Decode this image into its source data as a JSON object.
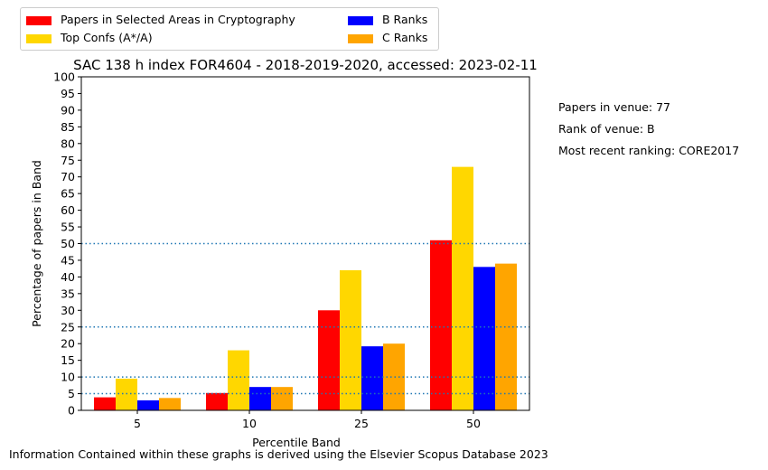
{
  "chart_data": {
    "type": "bar",
    "title": "SAC 138 h index FOR4604 - 2018-2019-2020, accessed: 2023-02-11",
    "xlabel": "Percentile Band",
    "ylabel": "Percentage of papers in Band",
    "categories": [
      "5",
      "10",
      "25",
      "50"
    ],
    "ylim": [
      0,
      100
    ],
    "yticks": [
      "0",
      "5",
      "10",
      "15",
      "20",
      "25",
      "30",
      "35",
      "40",
      "45",
      "50",
      "55",
      "60",
      "65",
      "70",
      "75",
      "80",
      "85",
      "90",
      "95",
      "100"
    ],
    "series": [
      {
        "name": "Papers in Selected Areas in Cryptography",
        "color": "#ff0000",
        "values": [
          3.9,
          5.2,
          30.0,
          51.0
        ]
      },
      {
        "name": "Top Confs (A*/A)",
        "color": "#ffd700",
        "values": [
          9.5,
          18.0,
          42.0,
          73.0
        ]
      },
      {
        "name": "B Ranks",
        "color": "#0000ff",
        "values": [
          3.0,
          7.0,
          19.2,
          43.0
        ]
      },
      {
        "name": "C Ranks",
        "color": "#ffa500",
        "values": [
          3.7,
          7.0,
          20.0,
          44.0
        ]
      }
    ],
    "reference_lines": [
      5,
      10,
      25,
      50
    ],
    "reference_line_color": "#1f77b4",
    "legend_placement": "top-left, outside"
  },
  "side_info": {
    "papers": "Papers in venue: 77",
    "rank": "Rank of venue: B",
    "ranking": "Most recent ranking: CORE2017"
  },
  "footer": "Information Contained within these graphs is derived using the Elsevier Scopus Database 2023"
}
